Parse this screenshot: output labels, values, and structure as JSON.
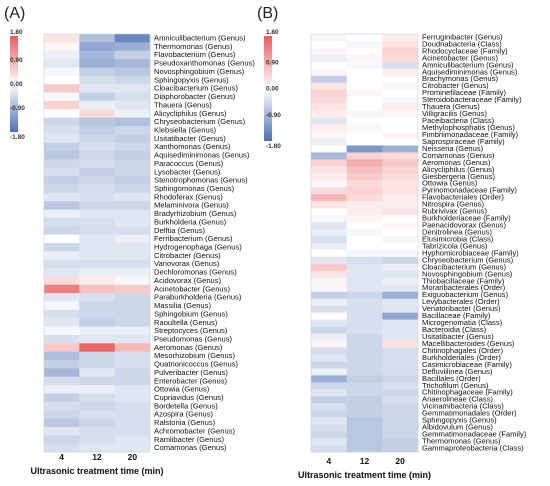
{
  "chart_data": [
    {
      "type": "heatmap",
      "panel_label": "(A)",
      "xlabel": "Ultrasonic treatment time (min)",
      "columns": [
        "4",
        "12",
        "20"
      ],
      "legend_ticks": [
        "1.80",
        "0.90",
        "0.00",
        "-0.90",
        "-1.80"
      ],
      "vmin": -1.8,
      "vmax": 1.8,
      "rows": [
        "Amniculibacterium (Genus)",
        "Thermomonas (Genus)",
        "Flavobacterium (Genus)",
        "Pseudoxanthomonas (Genus)",
        "Novosphingobium (Genus)",
        "Sphingopyxis (Genus)",
        "Cloacibacterium (Genus)",
        "Diaphorobacter (Genus)",
        "Thauera (Genus)",
        "Alicycliphilus (Genus)",
        "Chryseobacterium (Genus)",
        "Klebsiella (Genus)",
        "Usitatibacter (Genus)",
        "Xanthomonas (Genus)",
        "Aquisediminimonas (Genus)",
        "Paracoccus (Genus)",
        "Lysobacter (Genus)",
        "Stenotrophomonas (Genus)",
        "Sphingomonas (Genus)",
        "Rhodoferax (Genus)",
        "Melaminivora (Genus)",
        "Bradyrhizobium (Genus)",
        "Burkholderia (Genus)",
        "Delftia (Genus)",
        "Ferribacterium (Genus)",
        "Hydrogenophaga (Genus)",
        "Citrobacter (Genus)",
        "Variovorax (Genus)",
        "Dechloromonas (Genus)",
        "Acidovorax (Genus)",
        "Acinetobacter (Genus)",
        "Paraburkholderia (Genus)",
        "Massilia (Genus)",
        "Sphingobium (Genus)",
        "Raoultella (Genus)",
        "Streptocyces (Genus)",
        "Pseudomonas (Genus)",
        "Aeromonas (Genus)",
        "Mesorhizobium (Genus)",
        "Quatrionicoccus (Genus)",
        "Pulveribacter (Genus)",
        "Enterobacter (Genus)",
        "Ottowia (Genus)",
        "Cupriavidus (Genus)",
        "Bordetella (Genus)",
        "Azospira (Genus)",
        "Ralstonia (Genus)",
        "Achromobacter (Genus)",
        "Ramlibacter (Genus)",
        "Comamonas (Genus)"
      ],
      "values": [
        [
          0.3,
          -0.8,
          -1.5
        ],
        [
          0.1,
          -1.1,
          -1.0
        ],
        [
          -0.2,
          -0.9,
          -0.6
        ],
        [
          -0.3,
          -1.0,
          -0.9
        ],
        [
          -0.1,
          -0.6,
          -0.7
        ],
        [
          0.0,
          -0.4,
          -0.5
        ],
        [
          0.6,
          -0.3,
          -0.3
        ],
        [
          -0.1,
          -0.6,
          -0.4
        ],
        [
          0.5,
          -0.2,
          -0.3
        ],
        [
          0.0,
          0.4,
          -0.2
        ],
        [
          -0.5,
          -0.7,
          -0.8
        ],
        [
          -0.4,
          -0.6,
          -0.5
        ],
        [
          -0.3,
          -0.5,
          -0.6
        ],
        [
          -0.6,
          -0.4,
          -0.5
        ],
        [
          -0.7,
          -0.5,
          -0.6
        ],
        [
          -0.5,
          -0.4,
          -0.5
        ],
        [
          -0.4,
          -0.6,
          -0.5
        ],
        [
          -0.6,
          -0.5,
          -0.6
        ],
        [
          -0.5,
          -0.4,
          -0.5
        ],
        [
          -0.3,
          -0.4,
          -0.3
        ],
        [
          -0.7,
          -0.5,
          -0.5
        ],
        [
          -0.2,
          -0.3,
          -0.3
        ],
        [
          -0.4,
          -0.4,
          -0.3
        ],
        [
          -0.5,
          -0.4,
          -0.4
        ],
        [
          0.0,
          -0.3,
          -0.2
        ],
        [
          -0.5,
          -0.3,
          -0.3
        ],
        [
          -0.2,
          -0.3,
          -0.3
        ],
        [
          -0.4,
          -0.4,
          -0.4
        ],
        [
          -0.3,
          -0.2,
          -0.2
        ],
        [
          0.4,
          0.2,
          -0.1
        ],
        [
          1.4,
          0.7,
          0.6
        ],
        [
          -0.3,
          -0.4,
          -0.5
        ],
        [
          -0.1,
          -0.5,
          -0.5
        ],
        [
          -0.4,
          -0.5,
          -0.5
        ],
        [
          -0.3,
          -0.6,
          -0.5
        ],
        [
          -0.1,
          -0.2,
          -0.2
        ],
        [
          -0.4,
          -0.3,
          -0.3
        ],
        [
          0.6,
          1.7,
          0.8
        ],
        [
          -0.8,
          -0.5,
          -0.4
        ],
        [
          -0.6,
          -0.5,
          -0.4
        ],
        [
          -0.9,
          -0.3,
          -0.5
        ],
        [
          -0.4,
          -0.5,
          -0.5
        ],
        [
          -0.2,
          -0.2,
          -0.3
        ],
        [
          -0.6,
          -0.4,
          -0.3
        ],
        [
          -0.4,
          -0.5,
          -0.4
        ],
        [
          -0.5,
          -0.4,
          -0.4
        ],
        [
          -0.7,
          -0.5,
          -0.4
        ],
        [
          -0.3,
          -0.4,
          -0.4
        ],
        [
          -0.5,
          -0.4,
          -0.3
        ],
        [
          -0.4,
          -0.3,
          -0.3
        ]
      ]
    },
    {
      "type": "heatmap",
      "panel_label": "(B)",
      "xlabel": "Ultrasonic treatment time (min)",
      "columns": [
        "4",
        "12",
        "20"
      ],
      "legend_ticks": [
        "1.80",
        "0.90",
        "0.00",
        "-0.90",
        "-1.80"
      ],
      "vmin": -1.8,
      "vmax": 1.8,
      "rows": [
        "Ferruginibacter (Genus)",
        "Doudnabacteria (Class)",
        "Rhodocyclaceae (Family)",
        "Acinetobacter (Genus)",
        "Amniculibacterium (Genus)",
        "Aquisediminimonas (Genus)",
        "Brachymonas (Genus)",
        "Citrobacter (Genus)",
        "Prominefilaceae (Family)",
        "Steroidobacteraceae (Family)",
        "Thauera (Genus)",
        "Villigracilis (Genus)",
        "Paceibacteria (Class)",
        "Methylophosphatis (Genus)",
        "Fimbriimonadaceae (Family)",
        "Saprospiraceae (Family)",
        "Neisseria (Genus)",
        "Comamonas (Genus)",
        "Aeromonas (Genus)",
        "Alicycliphilus (Genus)",
        "Giesbergeria (Genus)",
        "Ottowia (Genus)",
        "Pyrinomonadaceae (Family)",
        "Flavobacteriales (Order)",
        "Nitrospira (Genus)",
        "Rubrivivax (Genus)",
        "Burkholderiaceae (Family)",
        "Paenacidovorax (Genus)",
        "Denitrolinea (Genus)",
        "Elusimicrobia (Class)",
        "Tabrizicola (Genus)",
        "Hyphomicrobiaceae (Family)",
        "Chryseobacterium (Genus)",
        "Cloacibacterium (Genus)",
        "Novosphingobium (Genus)",
        "Thiobacillaceae (Family)",
        "Moranbacterales (Order)",
        "Exiguobacterium (Genus)",
        "Levybacterales (Order)",
        "Venatoribacter (Genus)",
        "Bacillaceae (Family)",
        "Microgenomatia (Class)",
        "Bacteroidia (Class)",
        "Usitatibacter (Genus)",
        "Macellibacteroides (Genus)",
        "Chitinophagales (Order)",
        "Burkholderiales (Order)",
        "Casimicrobiaceae (Family)",
        "Defluviilinea (Genus)",
        "Bacillales (Order)",
        "Trichofilum (Genus)",
        "Chitinophagaceae (Family)",
        "Anaerolineae (Class)",
        "Vicinamibacteria (Class)",
        "Gemmatimonadales (Order)",
        "Sphingopyxis (Genus)",
        "Albidovulum (Genus)",
        "Gemmatimonadaceae (Family)",
        "Thermomonas (Genus)",
        "Gammaproteobacteria (Class)"
      ],
      "values": [
        [
          -0.1,
          0.0,
          0.2
        ],
        [
          0.0,
          -0.1,
          0.3
        ],
        [
          0.1,
          0.0,
          0.5
        ],
        [
          -0.2,
          0.1,
          0.4
        ],
        [
          0.0,
          -0.1,
          -0.4
        ],
        [
          0.1,
          0.0,
          0.2
        ],
        [
          -0.6,
          0.0,
          0.0
        ],
        [
          0.3,
          0.0,
          0.1
        ],
        [
          0.5,
          0.1,
          0.0
        ],
        [
          0.4,
          0.0,
          -0.1
        ],
        [
          0.3,
          0.0,
          0.2
        ],
        [
          0.2,
          -0.1,
          0.1
        ],
        [
          -0.3,
          0.0,
          0.0
        ],
        [
          0.2,
          -0.1,
          0.0
        ],
        [
          0.1,
          0.0,
          0.1
        ],
        [
          -0.2,
          0.0,
          0.0
        ],
        [
          0.0,
          -1.3,
          -1.0
        ],
        [
          -0.9,
          0.5,
          0.4
        ],
        [
          0.5,
          0.9,
          0.6
        ],
        [
          0.3,
          0.7,
          0.5
        ],
        [
          0.2,
          0.6,
          0.4
        ],
        [
          0.1,
          0.4,
          0.3
        ],
        [
          0.4,
          0.5,
          0.3
        ],
        [
          0.8,
          0.4,
          0.2
        ],
        [
          0.3,
          0.2,
          0.2
        ],
        [
          0.0,
          0.2,
          0.3
        ],
        [
          -0.1,
          0.1,
          0.0
        ],
        [
          -0.3,
          0.0,
          0.1
        ],
        [
          -0.2,
          -0.1,
          0.0
        ],
        [
          -0.4,
          0.0,
          -0.1
        ],
        [
          -0.2,
          0.0,
          0.0
        ],
        [
          0.0,
          -0.1,
          -0.1
        ],
        [
          -0.3,
          -0.4,
          -0.5
        ],
        [
          0.6,
          -0.3,
          -0.2
        ],
        [
          0.3,
          -0.3,
          -0.3
        ],
        [
          -0.1,
          -0.3,
          -0.2
        ],
        [
          0.1,
          -0.3,
          -0.3
        ],
        [
          -0.6,
          -0.5,
          -1.0
        ],
        [
          -0.2,
          -0.4,
          -0.3
        ],
        [
          -0.4,
          -0.4,
          -0.3
        ],
        [
          0.0,
          -0.4,
          -1.1
        ],
        [
          -0.3,
          -0.4,
          -0.3
        ],
        [
          -0.5,
          -0.4,
          -0.3
        ],
        [
          -0.2,
          -0.5,
          -0.3
        ],
        [
          0.1,
          -0.5,
          0.3
        ],
        [
          -0.4,
          -0.5,
          -0.4
        ],
        [
          -0.3,
          -0.5,
          -0.4
        ],
        [
          -0.5,
          -0.5,
          -0.4
        ],
        [
          -0.2,
          -0.5,
          -0.4
        ],
        [
          -1.0,
          -0.6,
          -0.5
        ],
        [
          -0.5,
          -0.5,
          -0.4
        ],
        [
          -0.3,
          -0.5,
          -0.5
        ],
        [
          -0.6,
          -0.6,
          -0.4
        ],
        [
          -0.4,
          -0.6,
          -0.5
        ],
        [
          -0.5,
          -0.6,
          -0.5
        ],
        [
          -0.3,
          -0.7,
          -0.5
        ],
        [
          -0.4,
          -0.7,
          -0.5
        ],
        [
          -0.5,
          -0.7,
          -0.5
        ],
        [
          -0.3,
          -0.7,
          -0.6
        ],
        [
          -0.4,
          -0.7,
          -0.6
        ]
      ]
    }
  ]
}
